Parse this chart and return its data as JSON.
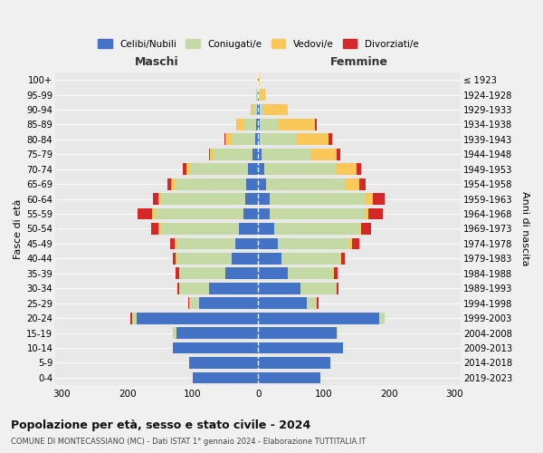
{
  "age_groups": [
    "0-4",
    "5-9",
    "10-14",
    "15-19",
    "20-24",
    "25-29",
    "30-34",
    "35-39",
    "40-44",
    "45-49",
    "50-54",
    "55-59",
    "60-64",
    "65-69",
    "70-74",
    "75-79",
    "80-84",
    "85-89",
    "90-94",
    "95-99",
    "100+"
  ],
  "birth_years": [
    "2019-2023",
    "2014-2018",
    "2009-2013",
    "2004-2008",
    "1999-2003",
    "1994-1998",
    "1989-1993",
    "1984-1988",
    "1979-1983",
    "1974-1978",
    "1969-1973",
    "1964-1968",
    "1959-1963",
    "1954-1958",
    "1949-1953",
    "1944-1948",
    "1939-1943",
    "1934-1938",
    "1929-1933",
    "1924-1928",
    "≤ 1923"
  ],
  "maschi": {
    "celibi": [
      100,
      105,
      130,
      125,
      185,
      90,
      75,
      50,
      40,
      35,
      30,
      22,
      20,
      18,
      15,
      8,
      5,
      3,
      2,
      1,
      1
    ],
    "coniugati": [
      0,
      0,
      0,
      5,
      8,
      15,
      45,
      70,
      85,
      90,
      120,
      135,
      130,
      110,
      90,
      60,
      35,
      20,
      5,
      1,
      0
    ],
    "vedovi": [
      0,
      0,
      0,
      0,
      0,
      0,
      0,
      1,
      1,
      2,
      3,
      5,
      3,
      5,
      5,
      5,
      10,
      10,
      5,
      1,
      0
    ],
    "divorziati": [
      0,
      0,
      0,
      0,
      2,
      2,
      3,
      5,
      5,
      8,
      10,
      22,
      8,
      5,
      5,
      2,
      2,
      0,
      0,
      0,
      0
    ]
  },
  "femmine": {
    "nubili": [
      95,
      110,
      130,
      120,
      185,
      75,
      65,
      45,
      35,
      30,
      25,
      18,
      18,
      12,
      10,
      5,
      3,
      2,
      2,
      1,
      1
    ],
    "coniugate": [
      0,
      0,
      0,
      2,
      8,
      15,
      55,
      70,
      90,
      110,
      130,
      145,
      145,
      120,
      110,
      75,
      55,
      30,
      8,
      2,
      0
    ],
    "vedove": [
      0,
      0,
      0,
      0,
      0,
      0,
      0,
      1,
      2,
      3,
      3,
      5,
      12,
      22,
      30,
      40,
      50,
      55,
      35,
      8,
      1
    ],
    "divorziate": [
      0,
      0,
      0,
      0,
      0,
      2,
      3,
      5,
      5,
      12,
      15,
      22,
      18,
      10,
      8,
      5,
      5,
      2,
      0,
      0,
      0
    ]
  },
  "colors": {
    "celibi": "#4472C4",
    "coniugati": "#C5D9A4",
    "vedovi": "#FAC858",
    "divorziati": "#D62728"
  },
  "title": "Popolazione per età, sesso e stato civile - 2024",
  "subtitle": "COMUNE DI MONTECASSIANO (MC) - Dati ISTAT 1° gennaio 2024 - Elaborazione TUTTITALIA.IT",
  "ylabel_left": "Fasce di età",
  "ylabel_right": "Anni di nascita",
  "xlim": 310,
  "background_color": "#f0f0f0",
  "plot_bg_color": "#e8e8e8",
  "legend_labels": [
    "Celibi/Nubili",
    "Coniugati/e",
    "Vedovi/e",
    "Divorziati/e"
  ]
}
